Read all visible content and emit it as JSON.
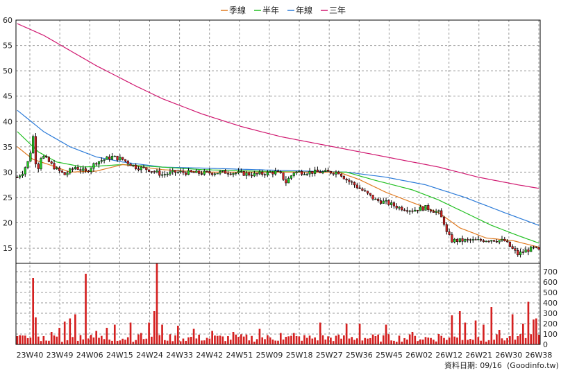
{
  "legend": {
    "items": [
      {
        "label": "季線",
        "color": "#e07a20"
      },
      {
        "label": "半年",
        "color": "#22c022"
      },
      {
        "label": "年線",
        "color": "#2a7ad8"
      },
      {
        "label": "三年",
        "color": "#d01870"
      }
    ]
  },
  "footer": {
    "date_text": "資料日期: 09/16",
    "source_text": "(Goodinfo.tw)"
  },
  "colors": {
    "up": "#22cc22",
    "down": "#d42020",
    "volume": "#d42020",
    "grid": "#999999",
    "axis": "#000000"
  },
  "chart_data": {
    "type": "candlestick",
    "grid": true,
    "legend_position": "top-center",
    "price_axis": {
      "ticks": [
        15,
        20,
        25,
        30,
        35,
        40,
        45,
        50,
        55,
        60
      ],
      "range": [
        12,
        60
      ]
    },
    "volume_axis": {
      "ticks": [
        0,
        100,
        200,
        300,
        400,
        500,
        600,
        700
      ],
      "range": [
        0,
        780
      ]
    },
    "x_ticks": [
      "23W40",
      "23W49",
      "24W06",
      "24W15",
      "24W24",
      "24W33",
      "24W42",
      "24W51",
      "25W09",
      "25W18",
      "25W27",
      "25W36",
      "25W45",
      "26W02",
      "26W12",
      "26W21",
      "26W30",
      "26W38"
    ],
    "price_anchors": [
      [
        0,
        29
      ],
      [
        2,
        30
      ],
      [
        4,
        32
      ],
      [
        5,
        34
      ],
      [
        6,
        37
      ],
      [
        7,
        32
      ],
      [
        8,
        31
      ],
      [
        9,
        33
      ],
      [
        10,
        33
      ],
      [
        12,
        32
      ],
      [
        15,
        30.5
      ],
      [
        18,
        29.5
      ],
      [
        22,
        31
      ],
      [
        26,
        30
      ],
      [
        30,
        32
      ],
      [
        36,
        33
      ],
      [
        40,
        32.5
      ],
      [
        45,
        31
      ],
      [
        50,
        30.5
      ],
      [
        55,
        29.5
      ],
      [
        60,
        30
      ],
      [
        70,
        29.8
      ],
      [
        80,
        30
      ],
      [
        90,
        29.5
      ],
      [
        98,
        30
      ],
      [
        100,
        29.5
      ],
      [
        102,
        28
      ],
      [
        105,
        30
      ],
      [
        115,
        30
      ],
      [
        122,
        30
      ],
      [
        125,
        28.5
      ],
      [
        128,
        27.5
      ],
      [
        132,
        26
      ],
      [
        136,
        24.5
      ],
      [
        140,
        24
      ],
      [
        145,
        23
      ],
      [
        150,
        22.5
      ],
      [
        155,
        23
      ],
      [
        160,
        22
      ],
      [
        162,
        20
      ],
      [
        163,
        18
      ],
      [
        165,
        16.5
      ],
      [
        170,
        16.5
      ],
      [
        175,
        16.5
      ],
      [
        180,
        16.7
      ],
      [
        185,
        16.4
      ],
      [
        188,
        14.8
      ],
      [
        190,
        13.8
      ],
      [
        193,
        14.5
      ],
      [
        196,
        15
      ],
      [
        198,
        14.5
      ]
    ],
    "ma_quarter": [
      [
        0,
        35
      ],
      [
        6,
        32.5
      ],
      [
        12,
        31.5
      ],
      [
        20,
        30
      ],
      [
        30,
        30.2
      ],
      [
        40,
        31.5
      ],
      [
        55,
        30.5
      ],
      [
        70,
        30
      ],
      [
        90,
        30
      ],
      [
        110,
        30
      ],
      [
        122,
        30
      ],
      [
        130,
        28.5
      ],
      [
        140,
        26
      ],
      [
        150,
        24
      ],
      [
        160,
        22
      ],
      [
        168,
        19
      ],
      [
        178,
        17
      ],
      [
        188,
        16.5
      ],
      [
        198,
        15.2
      ]
    ],
    "ma_half": [
      [
        0,
        38
      ],
      [
        8,
        34
      ],
      [
        15,
        32
      ],
      [
        25,
        31
      ],
      [
        40,
        31.5
      ],
      [
        55,
        31
      ],
      [
        70,
        30.5
      ],
      [
        90,
        30.2
      ],
      [
        110,
        30
      ],
      [
        125,
        30
      ],
      [
        135,
        28.5
      ],
      [
        150,
        26.5
      ],
      [
        160,
        24.5
      ],
      [
        170,
        22
      ],
      [
        180,
        19.5
      ],
      [
        190,
        17.5
      ],
      [
        198,
        16
      ]
    ],
    "ma_year": [
      [
        0,
        42.2
      ],
      [
        10,
        38
      ],
      [
        20,
        35
      ],
      [
        30,
        33
      ],
      [
        40,
        32
      ],
      [
        55,
        31
      ],
      [
        70,
        30.8
      ],
      [
        90,
        30.5
      ],
      [
        110,
        30.2
      ],
      [
        125,
        30
      ],
      [
        140,
        29
      ],
      [
        155,
        27.5
      ],
      [
        170,
        25
      ],
      [
        185,
        22
      ],
      [
        198,
        19.5
      ]
    ],
    "ma_3year": [
      [
        0,
        59.3
      ],
      [
        10,
        57
      ],
      [
        20,
        54
      ],
      [
        30,
        51
      ],
      [
        45,
        47
      ],
      [
        55,
        44.5
      ],
      [
        70,
        41.5
      ],
      [
        85,
        39
      ],
      [
        100,
        37
      ],
      [
        115,
        35.5
      ],
      [
        130,
        34
      ],
      [
        145,
        32.5
      ],
      [
        160,
        31
      ],
      [
        175,
        29
      ],
      [
        190,
        27.5
      ],
      [
        198,
        26.8
      ]
    ],
    "volume_spikes": [
      [
        0,
        80
      ],
      [
        6,
        640
      ],
      [
        7,
        260
      ],
      [
        13,
        120
      ],
      [
        16,
        160
      ],
      [
        18,
        220
      ],
      [
        20,
        250
      ],
      [
        22,
        290
      ],
      [
        24,
        90
      ],
      [
        26,
        680
      ],
      [
        30,
        130
      ],
      [
        34,
        160
      ],
      [
        37,
        190
      ],
      [
        43,
        210
      ],
      [
        47,
        110
      ],
      [
        50,
        210
      ],
      [
        52,
        320
      ],
      [
        53,
        780
      ],
      [
        55,
        190
      ],
      [
        61,
        180
      ],
      [
        67,
        150
      ],
      [
        74,
        130
      ],
      [
        82,
        120
      ],
      [
        92,
        150
      ],
      [
        100,
        110
      ],
      [
        105,
        110
      ],
      [
        115,
        210
      ],
      [
        125,
        200
      ],
      [
        130,
        200
      ],
      [
        140,
        190
      ],
      [
        150,
        120
      ],
      [
        160,
        100
      ],
      [
        165,
        280
      ],
      [
        168,
        320
      ],
      [
        170,
        210
      ],
      [
        174,
        230
      ],
      [
        177,
        190
      ],
      [
        180,
        360
      ],
      [
        183,
        140
      ],
      [
        188,
        290
      ],
      [
        190,
        80
      ],
      [
        192,
        200
      ],
      [
        194,
        410
      ],
      [
        196,
        240
      ],
      [
        197,
        250
      ]
    ]
  }
}
